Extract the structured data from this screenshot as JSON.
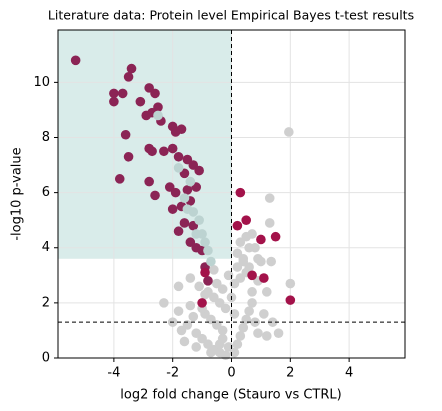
{
  "chart_data": {
    "type": "scatter",
    "title": "Literature data: Protein level Empirical Bayes t-test results",
    "x_label": "log2 fold change (Stauro vs CTRL)",
    "y_label": "-log10 p-value",
    "xlim": [
      -5.9,
      5.9
    ],
    "ylim": [
      0,
      11.9
    ],
    "xticks": [
      -4,
      -2,
      0,
      2,
      4
    ],
    "yticks": [
      0,
      2,
      4,
      6,
      8,
      10
    ],
    "grid": true,
    "reference_lines": {
      "x": 0,
      "y": 1.3
    },
    "shaded_region": {
      "x": [
        -5.9,
        0
      ],
      "y": [
        3.6,
        11.9
      ],
      "color": "#d9ecea"
    },
    "series": [
      {
        "color": "#cfcfcf",
        "x": [
          -0.2,
          -0.4,
          -0.6,
          -0.8,
          -1.0,
          -1.2,
          -0.3,
          -0.5,
          -0.7,
          -0.9,
          -0.1,
          0.1,
          0.2,
          0.3,
          0.4,
          0.5,
          0.6,
          0.7,
          0.8,
          0.9,
          -0.2,
          -0.4,
          -0.6,
          -0.8,
          -1.0,
          -1.3,
          -1.5,
          -1.7,
          -0.3,
          0.1,
          0.3,
          0.5,
          0.7,
          0.2,
          0.4,
          0.6,
          -0.1,
          -0.5,
          -0.9,
          -1.1,
          -1.4,
          -1.8,
          -2.3,
          -1.8,
          -1.4,
          -0.6,
          0.2,
          0.4,
          0.6,
          0.3,
          0.5,
          0.7,
          0.8,
          0.9,
          1.0,
          1.3,
          1.3,
          1.35,
          1.95,
          2.0,
          1.2,
          1.1,
          1.4,
          1.6,
          -2.0,
          -1.6,
          -1.2,
          0.1,
          0.0,
          -0.3,
          0.9,
          1.2,
          -0.4,
          -0.7
        ],
        "y": [
          0.1,
          0.2,
          0.3,
          0.5,
          0.7,
          0.9,
          1.0,
          1.2,
          1.4,
          1.6,
          0.4,
          0.2,
          0.5,
          0.8,
          1.1,
          1.4,
          1.7,
          2.0,
          1.3,
          0.9,
          1.8,
          2.0,
          2.2,
          2.4,
          1.8,
          1.5,
          1.2,
          1.0,
          2.5,
          2.7,
          2.9,
          3.1,
          2.4,
          3.3,
          3.5,
          3.3,
          3.0,
          2.7,
          2.3,
          2.6,
          2.9,
          2.6,
          2.0,
          1.7,
          1.9,
          3.2,
          3.8,
          3.6,
          4.0,
          4.2,
          4.4,
          4.5,
          4.0,
          3.6,
          3.5,
          5.8,
          4.9,
          3.5,
          8.2,
          2.7,
          2.4,
          1.6,
          1.3,
          0.9,
          1.3,
          0.6,
          0.4,
          1.6,
          2.2,
          0.7,
          2.8,
          0.8,
          0.5,
          0.2
        ]
      },
      {
        "color": "#8b2455",
        "x": [
          -5.3,
          -4.0,
          -4.0,
          -3.4,
          -3.5,
          -3.7,
          -3.1,
          -2.8,
          -2.6,
          -2.5,
          -2.7,
          -2.9,
          -2.4,
          -2.0,
          -1.9,
          -1.7,
          -3.6,
          -3.5,
          -2.8,
          -2.7,
          -2.3,
          -2.0,
          -1.8,
          -1.5,
          -3.8,
          -2.8,
          -2.1,
          -2.6,
          -1.9,
          -1.5,
          -1.2,
          -2.0,
          -1.7,
          -1.4,
          -1.6,
          -1.3,
          -1.8,
          -1.4,
          -1.2,
          -1.0,
          -0.9,
          -0.8,
          -1.1,
          -1.6,
          -1.3
        ],
        "y": [
          10.8,
          9.6,
          9.3,
          10.5,
          10.2,
          9.6,
          9.3,
          9.8,
          9.6,
          9.1,
          8.9,
          8.8,
          8.6,
          8.4,
          8.2,
          8.3,
          8.1,
          7.3,
          7.6,
          7.5,
          7.5,
          7.6,
          7.3,
          7.2,
          6.5,
          6.4,
          6.2,
          5.9,
          6.0,
          6.1,
          6.2,
          5.4,
          5.5,
          5.7,
          4.9,
          4.8,
          4.6,
          4.2,
          4.0,
          3.9,
          3.3,
          2.8,
          6.8,
          6.7,
          7.0
        ]
      },
      {
        "color": "#bcd3d1",
        "x": [
          -2.5,
          -1.8,
          -1.6,
          -1.5,
          -1.3,
          -1.1,
          -1.0,
          -0.9,
          -1.2,
          -0.8,
          -0.7,
          -1.4
        ],
        "y": [
          8.8,
          6.9,
          5.8,
          5.4,
          5.3,
          5.0,
          4.5,
          4.2,
          4.5,
          3.9,
          3.5,
          6.4
        ]
      },
      {
        "color": "#a3124a",
        "x": [
          0.5,
          0.3,
          1.0,
          1.5,
          0.2,
          0.7,
          2.0,
          1.1,
          -0.9,
          -1.0
        ],
        "y": [
          5.0,
          6.0,
          4.3,
          4.4,
          4.8,
          3.0,
          2.1,
          2.9,
          3.1,
          2.0
        ]
      }
    ]
  }
}
